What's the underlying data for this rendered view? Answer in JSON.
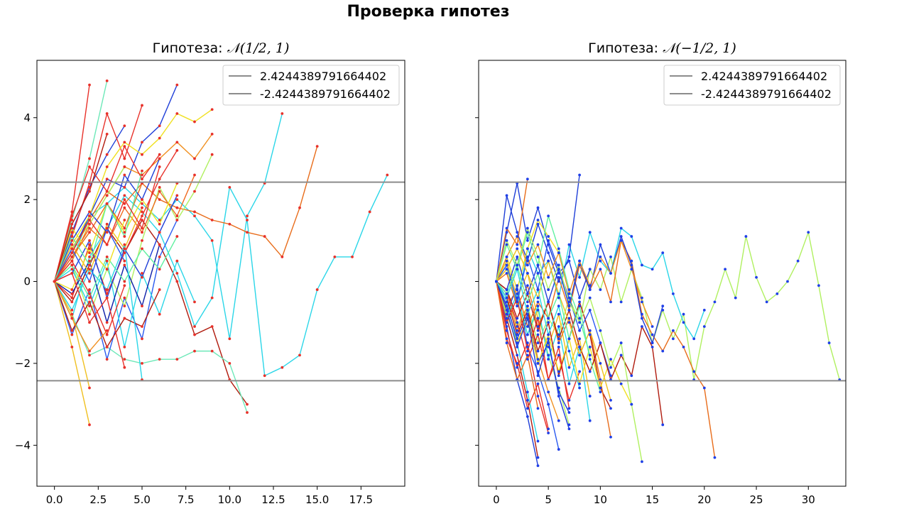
{
  "figure": {
    "suptitle": "Проверка гипотез",
    "threshold_color": "#8c8c8c",
    "colormap": "jet"
  },
  "chart_data": [
    {
      "type": "line",
      "title_prefix": "Гипотеза: ",
      "title_math": "𝒩(1/2, 1)",
      "marker_color": "#e8312a",
      "xlim": [
        -1,
        20
      ],
      "ylim": [
        -5,
        5.4
      ],
      "xticks": [
        0,
        2.5,
        5,
        7.5,
        10,
        12.5,
        15,
        17.5
      ],
      "xtick_labels": [
        "0.0",
        "2.5",
        "5.0",
        "7.5",
        "10.0",
        "12.5",
        "15.0",
        "17.5"
      ],
      "yticks": [
        -4,
        -2,
        0,
        2,
        4
      ],
      "ytick_labels": [
        "−4",
        "−2",
        "0",
        "2",
        "4"
      ],
      "legend": {
        "position": "upper-right",
        "entries": [
          "2.4244389791664402",
          "-2.4244389791664402"
        ]
      },
      "thresholds": [
        2.4244389791664402,
        -2.4244389791664402
      ],
      "series": [
        {
          "color": "#2ad6e8",
          "y": [
            0,
            0.5,
            1.6,
            1.9,
            2.3,
            1.9,
            1.5,
            2.0,
            1.6,
            1.0,
            -1.4,
            1.6,
            2.4,
            4.1
          ]
        },
        {
          "color": "#2ad6e8",
          "y": [
            0,
            -0.9,
            0.6,
            1.3,
            2.1,
            1.7,
            1.2,
            0.2,
            -1.1,
            -0.4,
            2.3,
            1.5,
            -2.3,
            -2.1,
            -1.8,
            -0.2,
            0.6,
            0.6,
            1.7,
            2.6
          ]
        },
        {
          "color": "#e86c1a",
          "y": [
            0,
            0.8,
            1.5,
            2.2,
            1.9,
            2.4,
            2.0,
            1.8,
            1.7,
            1.5,
            1.4,
            1.2,
            1.1,
            0.6,
            1.8,
            3.3
          ]
        },
        {
          "color": "#b01a0d",
          "y": [
            0,
            -0.5,
            0.4,
            1.3,
            0.7,
            1.5,
            0.9,
            0.0,
            -1.3,
            -1.1,
            -2.4,
            -3.0
          ]
        },
        {
          "color": "#6de8b8",
          "y": [
            0,
            -0.8,
            -1.8,
            -1.6,
            -1.9,
            -2.0,
            -1.9,
            -1.9,
            -1.7,
            -1.7,
            -2.0,
            -3.2
          ]
        },
        {
          "color": "#f0c020",
          "y": [
            0,
            -0.8,
            -2.6
          ]
        },
        {
          "color": "#f0c020",
          "y": [
            0,
            -1.6,
            -3.5
          ]
        },
        {
          "color": "#1f3fd8",
          "y": [
            0,
            1.2,
            2.3,
            3.1,
            3.8
          ]
        },
        {
          "color": "#1f3fd8",
          "y": [
            0,
            0.7,
            1.6,
            2.5,
            2.3,
            3.4,
            3.8,
            4.8
          ]
        },
        {
          "color": "#e8312a",
          "y": [
            0,
            1.7,
            4.8
          ]
        },
        {
          "color": "#6de8b8",
          "y": [
            0,
            1.5,
            3.0,
            4.9
          ]
        },
        {
          "color": "#e8312a",
          "y": [
            0,
            1.1,
            2.4,
            4.1,
            3.0,
            4.3
          ]
        },
        {
          "color": "#f0e020",
          "y": [
            0,
            0.9,
            1.6,
            2.8,
            3.4,
            3.1,
            3.5,
            4.1,
            3.9,
            4.2
          ]
        },
        {
          "color": "#f09020",
          "y": [
            0,
            0.5,
            1.4,
            2.1,
            2.8,
            2.6,
            3.0,
            3.4,
            3.0,
            3.6
          ]
        },
        {
          "color": "#2a5af0",
          "y": [
            0,
            -1.3,
            -0.2,
            -1.9,
            -0.4,
            -1.4,
            0.6,
            1.5
          ]
        },
        {
          "color": "#b0f060",
          "y": [
            0,
            0.4,
            -0.8,
            0.3,
            -0.6,
            1.0,
            2.3,
            1.5,
            2.2,
            3.1
          ]
        },
        {
          "color": "#e8312a",
          "y": [
            0,
            -0.4,
            0.9,
            -0.3,
            0.7,
            1.6,
            2.5,
            3.2
          ]
        },
        {
          "color": "#2ad6e8",
          "y": [
            0,
            0.3,
            -0.6,
            0.5,
            -1.6,
            0.2,
            -0.8,
            0.5,
            -0.5
          ]
        },
        {
          "color": "#f06a20",
          "y": [
            0,
            0.6,
            1.3,
            0.9,
            1.8,
            1.2,
            2.2,
            1.6,
            2.6
          ]
        },
        {
          "color": "#1f3fd8",
          "y": [
            0,
            0.2,
            1.0,
            -0.4,
            0.8,
            0.1,
            1.2,
            2.1
          ]
        },
        {
          "color": "#e8e820",
          "y": [
            0,
            1.3,
            0.7,
            1.9,
            1.2,
            2.0,
            1.4,
            2.4
          ]
        },
        {
          "color": "#0d1fa8",
          "y": [
            0,
            -0.3,
            0.5,
            -1.0,
            0.4,
            -0.6,
            0.9
          ]
        },
        {
          "color": "#b01a0d",
          "y": [
            0,
            -1.2,
            -0.5,
            -1.6,
            -0.9,
            -1.1,
            -0.2
          ]
        },
        {
          "color": "#60f0a0",
          "y": [
            0,
            0.4,
            -0.4,
            0.6,
            0.0,
            0.8,
            0.3,
            1.1
          ]
        },
        {
          "color": "#e8312a",
          "y": [
            0,
            1.6,
            2.8,
            2.2,
            3.3,
            2.5,
            3.1
          ]
        },
        {
          "color": "#f0c020",
          "y": [
            0,
            0.9,
            0.2,
            1.4,
            0.8,
            1.8
          ]
        },
        {
          "color": "#2ad6e8",
          "y": [
            0,
            -0.7,
            0.3,
            -0.2,
            0.9,
            -2.4
          ]
        },
        {
          "color": "#e86c1a",
          "y": [
            0,
            0.6,
            1.2,
            1.9,
            1.3,
            2.4
          ]
        },
        {
          "color": "#1f3fd8",
          "y": [
            0,
            1.0,
            1.7,
            1.2,
            2.6,
            2.0,
            3.0
          ]
        },
        {
          "color": "#b0f060",
          "y": [
            0,
            0.8,
            1.4,
            2.1,
            2.8
          ]
        },
        {
          "color": "#e8312a",
          "y": [
            0,
            0.5,
            -0.3,
            -1.3,
            -0.1
          ]
        },
        {
          "color": "#f0e020",
          "y": [
            0,
            -0.2,
            0.8,
            0.3,
            1.5
          ]
        },
        {
          "color": "#b01a0d",
          "y": [
            0,
            1.4,
            2.2,
            3.6
          ]
        },
        {
          "color": "#2a5af0",
          "y": [
            0,
            0.8,
            0.0,
            1.3,
            0.5
          ]
        },
        {
          "color": "#e8312a",
          "y": [
            0,
            0.2,
            -1.0,
            -0.4,
            -2.1
          ]
        },
        {
          "color": "#f09020",
          "y": [
            0,
            -0.9,
            -1.7,
            -1.2
          ]
        },
        {
          "color": "#60f0a0",
          "y": [
            0,
            1.1,
            0.4,
            1.9,
            1.1,
            2.7
          ]
        },
        {
          "color": "#e8312a",
          "y": [
            0,
            0.7,
            1.5,
            0.9,
            2.0,
            1.3,
            2.8
          ]
        }
      ]
    },
    {
      "type": "line",
      "title_prefix": "Гипотеза: ",
      "title_math": "𝒩(−1/2, 1)",
      "marker_color": "#1f3fe8",
      "xlim": [
        -1.7,
        33.6
      ],
      "ylim": [
        -5,
        5.4
      ],
      "xticks": [
        0,
        5,
        10,
        15,
        20,
        25,
        30
      ],
      "xtick_labels": [
        "0",
        "5",
        "10",
        "15",
        "20",
        "25",
        "30"
      ],
      "yticks": [
        -4,
        -2,
        0,
        2,
        4
      ],
      "legend": {
        "position": "upper-right",
        "entries": [
          "2.4244389791664402",
          "-2.4244389791664402"
        ]
      },
      "thresholds": [
        2.4244389791664402,
        -2.4244389791664402
      ],
      "series": [
        {
          "color": "#b0f060",
          "y": [
            0,
            -0.4,
            -1.1,
            -0.6,
            -1.5,
            -0.9,
            -1.3,
            -0.4,
            -1.0,
            0.3,
            -0.2,
            0.6,
            -0.5,
            0.3,
            -0.4,
            -1.5,
            -0.7,
            -1.4,
            -0.8,
            -2.4,
            -1.1,
            -0.5,
            0.3,
            -0.4,
            1.1,
            0.1,
            -0.5,
            -0.3,
            0.0,
            0.5,
            1.2,
            -0.1,
            -1.5,
            -2.4
          ]
        },
        {
          "color": "#2ad6e8",
          "y": [
            0,
            0.4,
            -0.6,
            0.8,
            0.2,
            0.5,
            -0.4,
            0.9,
            0.1,
            1.2,
            0.5,
            0.2,
            1.3,
            1.1,
            0.4,
            0.3,
            0.7,
            -0.3,
            -1.0,
            -1.4,
            -0.7
          ]
        },
        {
          "color": "#e86c1a",
          "y": [
            0,
            -0.6,
            -0.2,
            -1.1,
            -0.5,
            -0.9,
            0.1,
            -0.7,
            0.4,
            -0.2,
            0.3,
            -0.5,
            1.0,
            0.5,
            -0.8,
            -1.3,
            -1.7,
            -1.2,
            -1.6,
            -2.2,
            -2.6,
            -4.3
          ]
        },
        {
          "color": "#1f3fd8",
          "y": [
            0,
            2.1,
            1.2,
            0.5,
            1.4,
            0.7,
            0.0,
            0.6,
            2.6
          ]
        },
        {
          "color": "#1f3fd8",
          "y": [
            0,
            1.2,
            2.4,
            1.0,
            1.8,
            0.9,
            0.2,
            0.5,
            -0.4,
            0.3
          ]
        },
        {
          "color": "#e86c1a",
          "y": [
            0,
            1.3,
            0.9,
            2.5
          ]
        },
        {
          "color": "#f0e020",
          "y": [
            0,
            0.6,
            -0.2,
            0.8,
            1.5,
            1.1,
            0.7
          ]
        },
        {
          "color": "#b01a0d",
          "y": [
            0,
            -0.9,
            -1.8,
            -2.9,
            -4.3
          ]
        },
        {
          "color": "#1f3fd8",
          "y": [
            0,
            -1.1,
            -2.4,
            -3.3,
            -4.5
          ]
        },
        {
          "color": "#2ad6e8",
          "y": [
            0,
            -0.5,
            -1.5,
            -2.7,
            -3.9
          ]
        },
        {
          "color": "#e8312a",
          "y": [
            0,
            -1.4,
            -2.0,
            -3.1,
            -2.5,
            -3.6
          ]
        },
        {
          "color": "#f09020",
          "y": [
            0,
            -0.2,
            -1.2,
            -0.6,
            -1.9,
            -2.7,
            -3.4
          ]
        },
        {
          "color": "#2a5af0",
          "y": [
            0,
            -0.8,
            -0.1,
            -1.6,
            -2.2,
            -3.0,
            -4.1
          ]
        },
        {
          "color": "#b0f060",
          "y": [
            0,
            0.3,
            -0.5,
            -1.3,
            -0.7,
            -1.8,
            -2.6,
            -3.5
          ]
        },
        {
          "color": "#e8312a",
          "y": [
            0,
            -0.3,
            -1.0,
            -1.9,
            -1.3,
            -2.4,
            -1.8,
            -2.9,
            -2.2
          ]
        },
        {
          "color": "#1f3fd8",
          "y": [
            0,
            -0.6,
            -1.4,
            -0.8,
            -2.0,
            -1.5,
            -2.7,
            -3.2
          ]
        },
        {
          "color": "#f0c020",
          "y": [
            0,
            0.5,
            -0.4,
            0.2,
            -0.9,
            -1.6,
            -0.8,
            -2.1,
            -1.4,
            -2.8
          ]
        },
        {
          "color": "#2ad6e8",
          "y": [
            0,
            -0.9,
            -0.3,
            -1.3,
            -0.6,
            -1.9,
            -1.1,
            -2.5,
            -1.6,
            -3.4
          ]
        },
        {
          "color": "#b01a0d",
          "y": [
            0,
            -0.4,
            -1.3,
            -0.7,
            -1.7,
            -1.0,
            -2.3,
            -1.4,
            -0.5,
            -1.3,
            -2.6,
            -3.1
          ]
        },
        {
          "color": "#e86c1a",
          "y": [
            0,
            0.2,
            -0.6,
            -0.1,
            -1.1,
            -0.5,
            -1.5,
            -0.9,
            -1.8,
            -1.2,
            -2.4,
            -3.8
          ]
        },
        {
          "color": "#1f3fd8",
          "y": [
            0,
            -0.2,
            0.6,
            -0.3,
            0.4,
            -0.5,
            0.3,
            -0.6,
            0.5,
            -0.2,
            0.9,
            0.2,
            1.1,
            0.4,
            -0.9,
            -1.5,
            -0.6
          ]
        },
        {
          "color": "#f0e020",
          "y": [
            0,
            -0.8,
            -1.5,
            -0.9,
            -2.0,
            -1.3,
            -2.2,
            -1.4,
            -2.5,
            -1.6,
            -2.6,
            -1.9,
            -2.5,
            -3.0
          ]
        },
        {
          "color": "#60f0a0",
          "y": [
            0,
            0.9,
            0.3,
            1.2,
            0.4,
            1.6,
            0.8,
            -0.2,
            -0.9,
            -1.8
          ]
        },
        {
          "color": "#e8312a",
          "y": [
            0,
            -1.0,
            -0.4,
            -1.7,
            -0.9,
            -2.4,
            -1.6,
            -3.1
          ]
        },
        {
          "color": "#2a5af0",
          "y": [
            0,
            0.4,
            -0.5,
            0.6,
            -0.2,
            1.0,
            0.3,
            -0.4,
            -1.2,
            -0.7,
            -1.5,
            -2.3
          ]
        },
        {
          "color": "#b01a0d",
          "y": [
            0,
            -0.2,
            -0.9,
            -0.3,
            -1.2,
            -0.5,
            -1.4,
            -0.7,
            -1.6,
            -2.2,
            -1.5,
            -2.4,
            -1.8,
            -2.3,
            -1.1,
            -1.6,
            -3.5
          ]
        },
        {
          "color": "#f09020",
          "y": [
            0,
            0.6,
            1.1,
            0.4,
            0.9,
            0.1,
            0.7,
            -0.3,
            0.5,
            -0.1,
            0.6,
            0.2,
            1.0,
            0.3,
            -0.5,
            -1.1
          ]
        },
        {
          "color": "#b0f060",
          "y": [
            0,
            1.0,
            0.4,
            1.3,
            0.6,
            -0.2,
            0.4,
            -0.5,
            -1.0,
            -0.4,
            -1.2,
            -2.1,
            -1.5,
            -3.0,
            -4.4
          ]
        },
        {
          "color": "#e8312a",
          "y": [
            0,
            -1.2,
            -2.1,
            -1.5,
            -2.8,
            -3.7
          ]
        },
        {
          "color": "#2ad6e8",
          "y": [
            0,
            -0.4,
            0.3,
            -0.8,
            -0.2,
            -1.3,
            -0.6,
            -1.7,
            -2.6
          ]
        },
        {
          "color": "#1f3fd8",
          "y": [
            0,
            -0.7,
            -1.6,
            -0.9,
            -2.3,
            -1.4,
            -2.8,
            -3.6
          ]
        },
        {
          "color": "#f0c020",
          "y": [
            0,
            0.3,
            0.8,
            0.2,
            -0.4,
            0.5,
            -0.3,
            -1.0,
            -1.8,
            -1.2,
            -2.0,
            -2.9
          ]
        },
        {
          "color": "#e86c1a",
          "y": [
            0,
            -1.5,
            -2.4,
            -1.8,
            -3.1
          ]
        },
        {
          "color": "#60f0a0",
          "y": [
            0,
            -0.3,
            0.4,
            -0.5,
            0.2,
            -0.9,
            -0.3,
            -1.4,
            -0.6,
            -1.9,
            -2.7
          ]
        }
      ]
    }
  ]
}
